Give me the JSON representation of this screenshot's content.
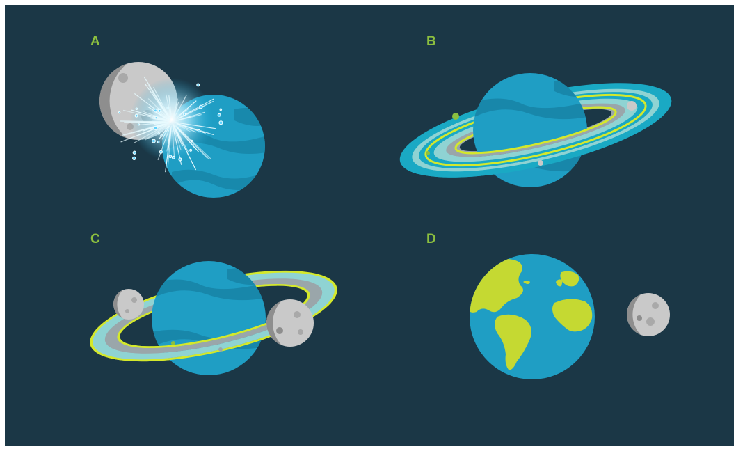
{
  "panels": {
    "a": {
      "label": "A",
      "scene": "moon-planet-collision"
    },
    "b": {
      "label": "B",
      "scene": "ringed-planet-with-debris"
    },
    "c": {
      "label": "C",
      "scene": "ringed-planet-with-two-moons"
    },
    "d": {
      "label": "D",
      "scene": "earth-and-moon"
    }
  },
  "colors": {
    "background": "#1b3746",
    "label": "#8cbf3f",
    "planet": "#1f9ec4",
    "planet_dark": "#1783a6",
    "ring_outer": "#1aa9c4",
    "ring_light": "#8fd3d3",
    "ring_yellow": "#d4e82c",
    "ring_gray": "#9aa6aa",
    "moon": "#c9c9c9",
    "land": "#c5d932",
    "spark": "#bfefff"
  }
}
